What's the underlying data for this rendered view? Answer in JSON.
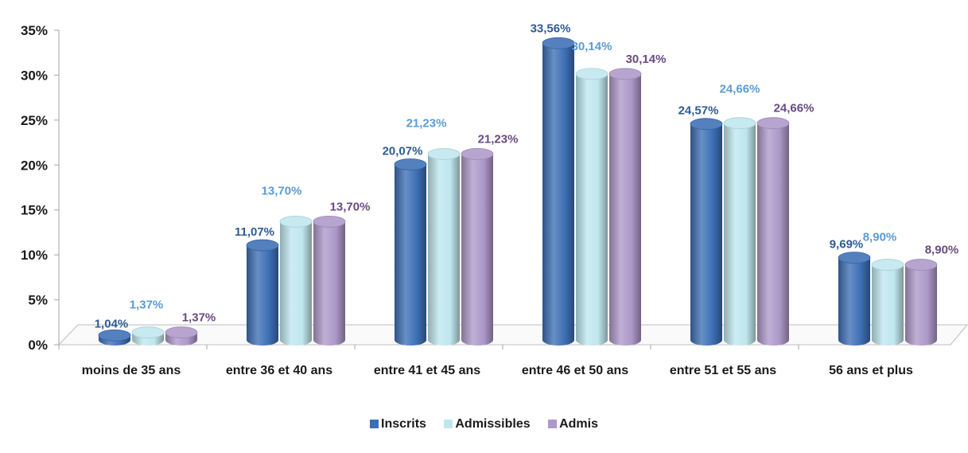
{
  "chart_data": {
    "type": "bar",
    "categories": [
      "moins de 35 ans",
      "entre 36 et 40 ans",
      "entre 41 et 45 ans",
      "entre 46 et 50 ans",
      "entre 51 et 55 ans",
      "56 ans et plus"
    ],
    "series": [
      {
        "name": "Inscrits",
        "values": [
          1.04,
          11.07,
          20.07,
          33.56,
          24.57,
          9.69
        ],
        "labels": [
          "1,04%",
          "11,07%",
          "20,07%",
          "33,56%",
          "24,57%",
          "9,69%"
        ],
        "color": "#3d6fb5",
        "label_color": "#2e5c96"
      },
      {
        "name": "Admissibles",
        "values": [
          1.37,
          13.7,
          21.23,
          30.14,
          24.66,
          8.9
        ],
        "labels": [
          "1,37%",
          "13,70%",
          "21,23%",
          "30,14%",
          "24,66%",
          "8,90%"
        ],
        "color": "#bfe6ee",
        "label_color": "#5b9bd5"
      },
      {
        "name": "Admis",
        "values": [
          1.37,
          13.7,
          21.23,
          30.14,
          24.66,
          8.9
        ],
        "labels": [
          "1,37%",
          "13,70%",
          "21,23%",
          "30,14%",
          "24,66%",
          "8,90%"
        ],
        "color": "#ad98c9",
        "label_color": "#6a4a82"
      }
    ],
    "yticks": [
      "0%",
      "5%",
      "10%",
      "15%",
      "20%",
      "25%",
      "30%",
      "35%"
    ],
    "ylim": [
      0,
      35
    ],
    "grid": false,
    "legend_position": "bottom",
    "style": "3d-cylinder"
  }
}
